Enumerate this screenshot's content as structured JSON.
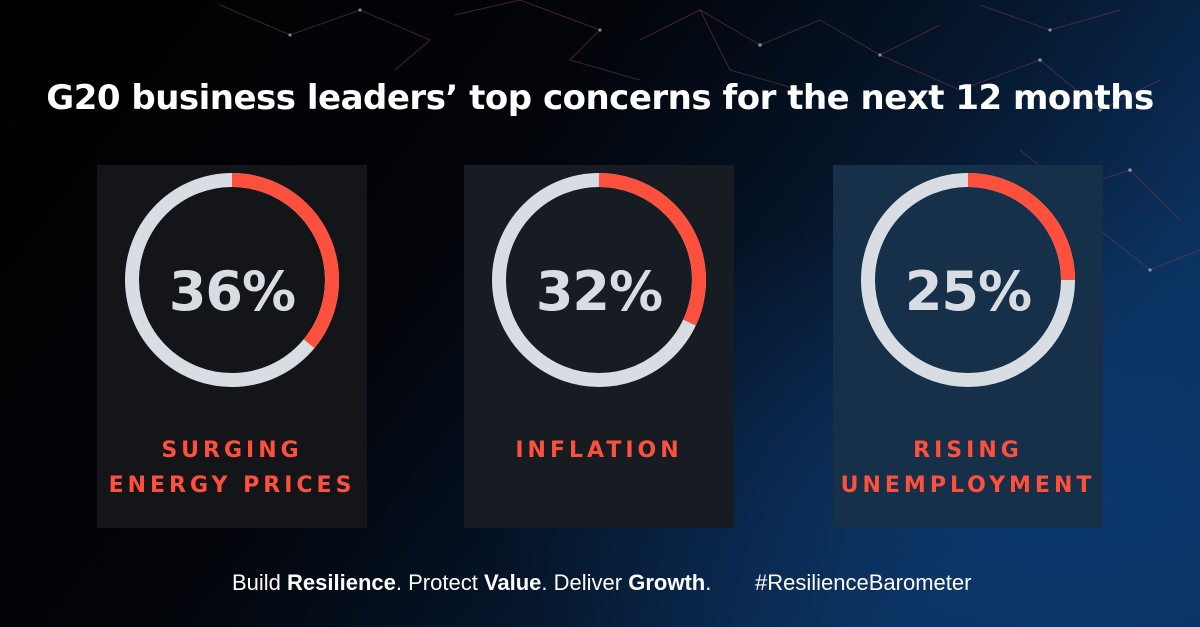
{
  "title": "G20 business leaders’ top concerns for the next 12 months",
  "chart_data": {
    "type": "donut",
    "title": "G20 business leaders’ top concerns for the next 12 months",
    "categories": [
      "SURGING ENERGY PRICES",
      "INFLATION",
      "RISING UNEMPLOYMENT"
    ],
    "values": [
      36,
      32,
      25
    ],
    "unit": "%",
    "items": [
      {
        "value": 36,
        "display": "36%",
        "label_lines": [
          "SURGING",
          "ENERGY PRICES"
        ]
      },
      {
        "value": 32,
        "display": "32%",
        "label_lines": [
          "INFLATION"
        ]
      },
      {
        "value": 25,
        "display": "25%",
        "label_lines": [
          "RISING",
          "UNEMPLOYMENT"
        ]
      }
    ]
  },
  "footer": {
    "tagline_parts": [
      {
        "text": "Build ",
        "bold": false
      },
      {
        "text": "Resilience",
        "bold": true
      },
      {
        "text": ". Protect ",
        "bold": false
      },
      {
        "text": "Value",
        "bold": true
      },
      {
        "text": ". Deliver ",
        "bold": false
      },
      {
        "text": "Growth",
        "bold": true
      },
      {
        "text": ".",
        "bold": false
      }
    ],
    "hashtag": "#ResilienceBarometer"
  },
  "colors": {
    "accent": "#ff503d",
    "ring_track": "#d8dde3",
    "card_bg": [
      "#141518",
      "#171c22",
      "#163049"
    ],
    "background_dark": "#000000",
    "background_blue": "#0a2d5e"
  }
}
